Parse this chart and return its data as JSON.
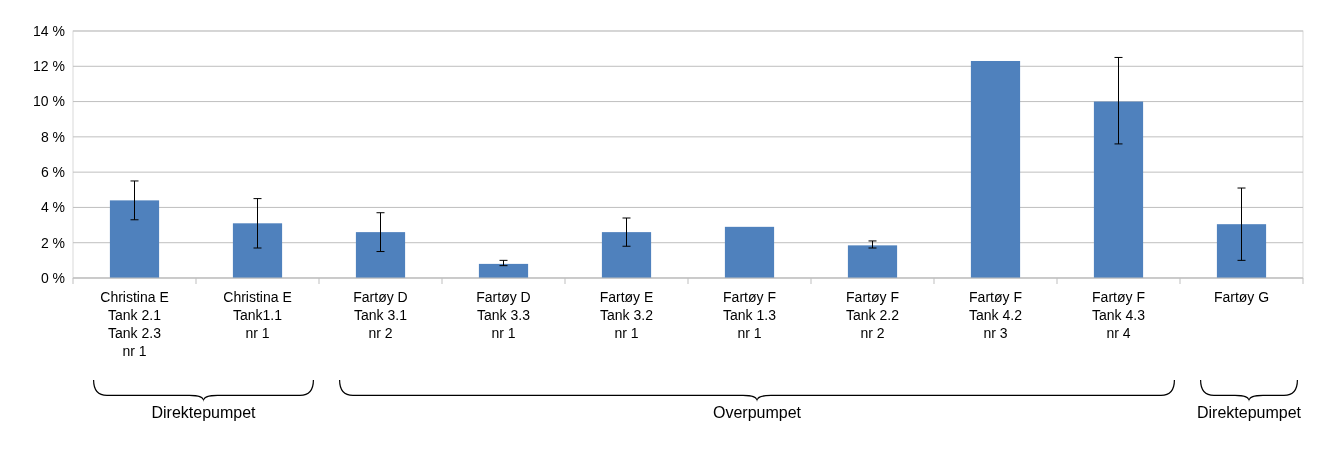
{
  "chart_data": {
    "type": "bar",
    "categories": [
      "Christina E\nTank 2.1\nTank 2.3\nnr 1",
      "Christina E\nTank1.1\nnr 1",
      "Fartøy D\nTank 3.1\nnr 2",
      "Fartøy D\nTank 3.3\nnr 1",
      "Fartøy E\nTank 3.2\nnr 1",
      "Fartøy F\nTank 1.3\nnr 1",
      "Fartøy F\nTank 2.2\nnr 2",
      "Fartøy F\nTank 4.2\nnr 3",
      "Fartøy F\nTank 4.3\nnr 4",
      "Fartøy G"
    ],
    "values": [
      4.4,
      3.1,
      2.6,
      0.8,
      2.6,
      2.9,
      1.85,
      12.3,
      10.0,
      3.05
    ],
    "errors": [
      [
        3.3,
        5.5
      ],
      [
        1.7,
        4.5
      ],
      [
        1.5,
        3.7
      ],
      [
        0.7,
        1.0
      ],
      [
        1.8,
        3.4
      ],
      null,
      [
        1.7,
        2.1
      ],
      null,
      [
        7.6,
        12.5
      ],
      [
        1.0,
        5.1
      ]
    ],
    "color": "#4f81bd",
    "ylim": [
      0,
      14
    ],
    "yticks": [
      {
        "value": 0,
        "label": "0 %"
      },
      {
        "value": 2,
        "label": "2 %"
      },
      {
        "value": 4,
        "label": "4 %"
      },
      {
        "value": 6,
        "label": "6 %"
      },
      {
        "value": 8,
        "label": "8 %"
      },
      {
        "value": 10,
        "label": "10 %"
      },
      {
        "value": 12,
        "label": "12 %"
      },
      {
        "value": 14,
        "label": "14 %"
      }
    ],
    "grid": "y",
    "annotations": [
      "Direktepumpet",
      "Overpumpet",
      "Direktepumpet"
    ]
  }
}
